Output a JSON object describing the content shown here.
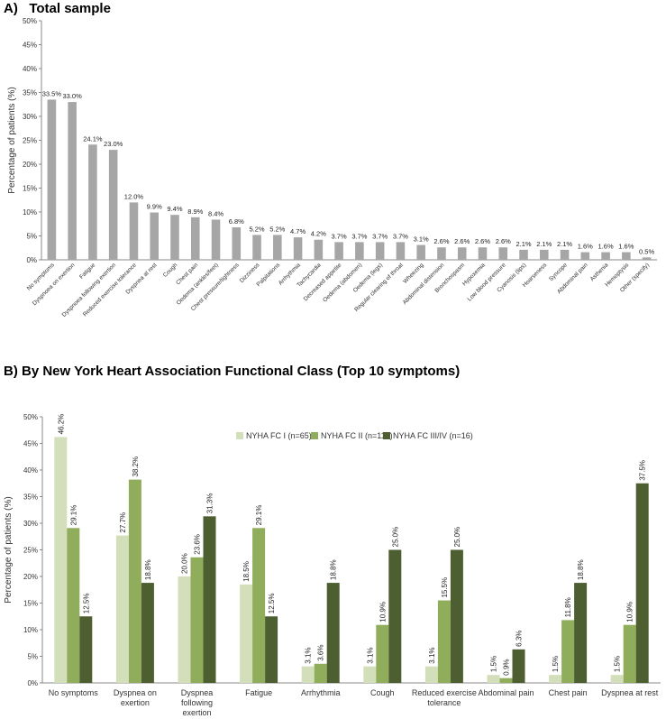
{
  "chart_data": [
    {
      "type": "bar",
      "title": "A)   Total sample",
      "ylabel": "Percentage of patients (%)",
      "ylim": [
        0,
        50
      ],
      "yticks": [
        "0%",
        "5%",
        "10%",
        "15%",
        "20%",
        "25%",
        "30%",
        "35%",
        "40%",
        "45%",
        "50%"
      ],
      "grid": false,
      "color": "#a6a6a6",
      "categories": [
        "No symptoms",
        "Dyspnoea on exertion",
        "Fatigue",
        "Dyspnoea following exertion",
        "Reduced exercise tolerance",
        "Dyspnea at rest",
        "Cough",
        "Chest pain",
        "Oedema (ankles/feet)",
        "Chest pressure/tightness",
        "Dizziness",
        "Palpitations",
        "Arrhythmia",
        "Tachycardia",
        "Decreased appetite",
        "Oedema (abdomen)",
        "Oedema (legs)",
        "Regular clearing of throat",
        "Wheezing",
        "Abdominal distension",
        "Bronchospasm",
        "Hypoxemia",
        "Low blood pressure",
        "Cyanosis (lips)",
        "Hoarseness",
        "Syncope",
        "Abdominal pain",
        "Asthenia",
        "Hemoptysis",
        "Other (specify)"
      ],
      "values": [
        33.5,
        33.0,
        24.1,
        23.0,
        12.0,
        9.9,
        9.4,
        8.9,
        8.4,
        6.8,
        5.2,
        5.2,
        4.7,
        4.2,
        3.7,
        3.7,
        3.7,
        3.7,
        3.1,
        2.6,
        2.6,
        2.6,
        2.6,
        2.1,
        2.1,
        2.1,
        1.6,
        1.6,
        1.6,
        0.5
      ],
      "labels": [
        "33.5%",
        "33.0%",
        "24.1%",
        "23.0%",
        "12.0%",
        "9.9%",
        "9.4%",
        "8.9%",
        "8.4%",
        "6.8%",
        "5.2%",
        "5.2%",
        "4.7%",
        "4.2%",
        "3.7%",
        "3.7%",
        "3.7%",
        "3.7%",
        "3.1%",
        "2.6%",
        "2.6%",
        "2.6%",
        "2.6%",
        "2.1%",
        "2.1%",
        "2.1%",
        "1.6%",
        "1.6%",
        "1.6%",
        "0.5%"
      ]
    },
    {
      "type": "bar",
      "title": "B) By New York Heart Association Functional Class (Top 10 symptoms)",
      "ylabel": "Percentage of patients (%)",
      "ylim": [
        0,
        50
      ],
      "yticks": [
        "0%",
        "5%",
        "10%",
        "15%",
        "20%",
        "25%",
        "30%",
        "35%",
        "40%",
        "45%",
        "50%"
      ],
      "grid": false,
      "legend_position": "top",
      "categories": [
        "No symptoms",
        "Dyspnea on exertion",
        "Dyspnea following exertion",
        "Fatigue",
        "Arrhythmia",
        "Cough",
        "Reduced exercise tolerance",
        "Abdominal pain",
        "Chest pain",
        "Dyspnea at rest"
      ],
      "series": [
        {
          "name": "NYHA FC I (n=65)",
          "color": "#d3dfba",
          "values": [
            46.2,
            27.7,
            20.0,
            18.5,
            3.1,
            3.1,
            3.1,
            1.5,
            1.5,
            1.5
          ],
          "labels": [
            "46.2%",
            "27.7%",
            "20.0%",
            "18.5%",
            "3.1%",
            "3.1%",
            "3.1%",
            "1.5%",
            "1.5%",
            "1.5%"
          ]
        },
        {
          "name": "NYHA FC II (n=110)",
          "color": "#8fad5a",
          "values": [
            29.1,
            38.2,
            23.6,
            29.1,
            3.6,
            10.9,
            15.5,
            0.9,
            11.8,
            10.9
          ],
          "labels": [
            "29.1%",
            "38.2%",
            "23.6%",
            "29.1%",
            "3.6%",
            "10.9%",
            "15.5%",
            "0.9%",
            "11.8%",
            "10.9%"
          ]
        },
        {
          "name": "NYHA FC III/IV (n=16)",
          "color": "#4d5e31",
          "values": [
            12.5,
            18.8,
            31.3,
            12.5,
            18.8,
            25.0,
            25.0,
            6.3,
            18.8,
            37.5
          ],
          "labels": [
            "12.5%",
            "18.8%",
            "31.3%",
            "12.5%",
            "18.8%",
            "25.0%",
            "25.0%",
            "6.3%",
            "18.8%",
            "37.5%"
          ]
        }
      ]
    }
  ]
}
